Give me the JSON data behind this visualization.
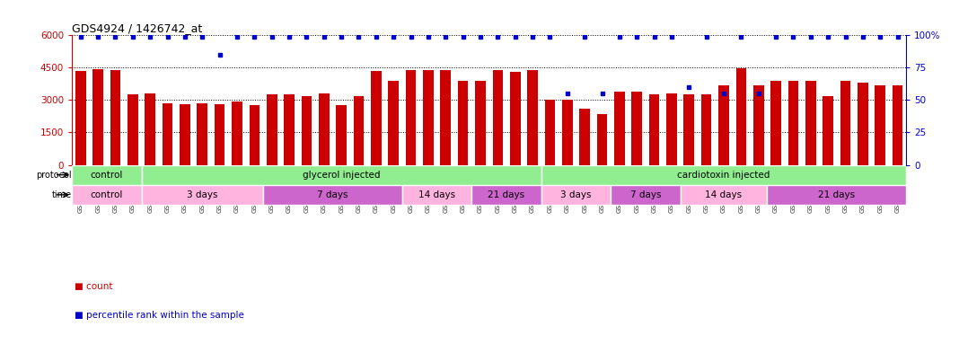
{
  "title": "GDS4924 / 1426742_at",
  "samples": [
    "GSM1109954",
    "GSM1109955",
    "GSM1109956",
    "GSM1109957",
    "GSM1109958",
    "GSM1109959",
    "GSM1109960",
    "GSM1109961",
    "GSM1109962",
    "GSM1109963",
    "GSM1109964",
    "GSM1109965",
    "GSM1109966",
    "GSM1109967",
    "GSM1109968",
    "GSM1109969",
    "GSM1109970",
    "GSM1109971",
    "GSM1109972",
    "GSM1109973",
    "GSM1109974",
    "GSM1109975",
    "GSM1109976",
    "GSM1109977",
    "GSM1109978",
    "GSM1109979",
    "GSM1109980",
    "GSM1109981",
    "GSM1109982",
    "GSM1109983",
    "GSM1109984",
    "GSM1109985",
    "GSM1109986",
    "GSM1109987",
    "GSM1109988",
    "GSM1109989",
    "GSM1109990",
    "GSM1109991",
    "GSM1109992",
    "GSM1109993",
    "GSM1109994",
    "GSM1109995",
    "GSM1109996",
    "GSM1109997",
    "GSM1109998",
    "GSM1109999",
    "GSM1110000",
    "GSM1110001"
  ],
  "counts": [
    4350,
    4430,
    4380,
    3270,
    3310,
    2850,
    2800,
    2860,
    2800,
    2940,
    2770,
    3250,
    3260,
    3200,
    3320,
    2780,
    3200,
    4350,
    3900,
    4380,
    4380,
    4380,
    3900,
    3900,
    4380,
    4320,
    4380,
    3000,
    3000,
    2600,
    2360,
    3380,
    3380,
    3280,
    3300,
    3280,
    3260,
    3680,
    4480,
    3680,
    3900,
    3880,
    3900,
    3180,
    3880,
    3820,
    3680,
    3680
  ],
  "percentile_ranks": [
    99,
    99,
    99,
    99,
    99,
    99,
    99,
    99,
    85,
    99,
    99,
    99,
    99,
    99,
    99,
    99,
    99,
    99,
    99,
    99,
    99,
    99,
    99,
    99,
    99,
    99,
    99,
    99,
    55,
    99,
    55,
    99,
    99,
    99,
    99,
    60,
    99,
    55,
    99,
    55,
    99,
    99,
    99,
    99,
    99,
    99,
    99,
    99
  ],
  "bar_color": "#cc0000",
  "dot_color": "#0000cc",
  "ylim_left": [
    0,
    6000
  ],
  "ylim_right": [
    0,
    100
  ],
  "yticks_left": [
    0,
    1500,
    3000,
    4500,
    6000
  ],
  "yticks_right": [
    0,
    25,
    50,
    75,
    100
  ],
  "background_color": "#ffffff",
  "left_axis_color": "#cc0000",
  "right_axis_color": "#0000cc",
  "proto_data": [
    {
      "label": "control",
      "start": 0,
      "end": 4
    },
    {
      "label": "glycerol injected",
      "start": 4,
      "end": 27
    },
    {
      "label": "cardiotoxin injected",
      "start": 27,
      "end": 48
    }
  ],
  "proto_color": "#90ee90",
  "time_data": [
    {
      "label": "control",
      "start": 0,
      "end": 4,
      "color": "#ffb3de"
    },
    {
      "label": "3 days",
      "start": 4,
      "end": 11,
      "color": "#ffb3de"
    },
    {
      "label": "7 days",
      "start": 11,
      "end": 19,
      "color": "#cc66cc"
    },
    {
      "label": "14 days",
      "start": 19,
      "end": 23,
      "color": "#ffb3de"
    },
    {
      "label": "21 days",
      "start": 23,
      "end": 27,
      "color": "#cc66cc"
    },
    {
      "label": "3 days",
      "start": 27,
      "end": 31,
      "color": "#ffb3de"
    },
    {
      "label": "7 days",
      "start": 31,
      "end": 35,
      "color": "#cc66cc"
    },
    {
      "label": "14 days",
      "start": 35,
      "end": 40,
      "color": "#ffb3de"
    },
    {
      "label": "21 days",
      "start": 40,
      "end": 48,
      "color": "#cc66cc"
    }
  ]
}
